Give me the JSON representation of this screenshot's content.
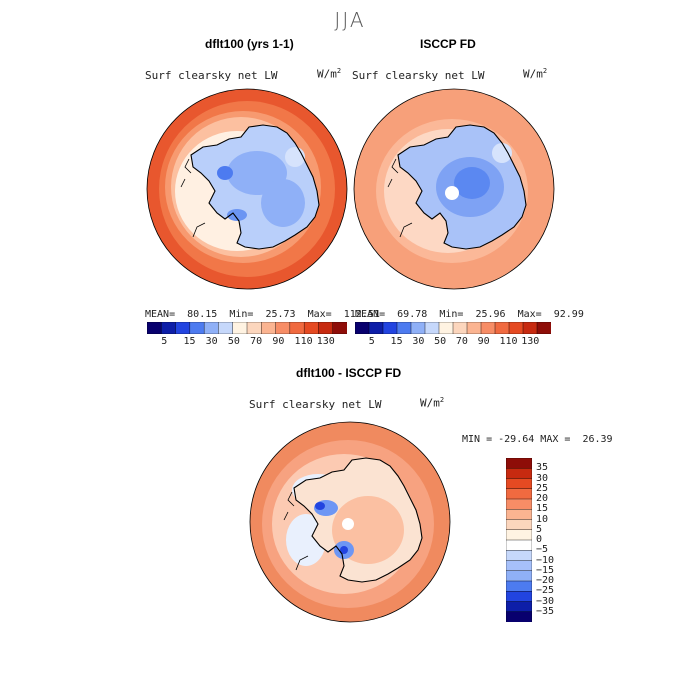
{
  "season": "JJA",
  "units_base": "W/m",
  "units_exp": "2",
  "panels": {
    "model": {
      "title": "dflt100 (yrs 1-1)",
      "variable": "Surf clearsky net LW",
      "mean_label": "MEAN=",
      "mean": "80.15",
      "min_label": "Min=",
      "min": "25.73",
      "max_label": "Max=",
      "max": "112.51"
    },
    "obs": {
      "title": "ISCCP FD",
      "variable": "Surf clearsky net LW",
      "mean_label": "MEAN=",
      "mean": "69.78",
      "min_label": "Min=",
      "min": "25.96",
      "max_label": "Max=",
      "max": "92.99"
    },
    "diff": {
      "title": "dflt100 - ISCCP FD",
      "variable": "Surf clearsky net LW",
      "min_label": "MIN =",
      "min": "-29.64",
      "max_label": "MAX =",
      "max": "26.39"
    }
  },
  "colorbar_abs": {
    "labels": [
      "5",
      "15",
      "30",
      "50",
      "70",
      "90",
      "110",
      "130"
    ],
    "colors": [
      "#08006e",
      "#0d1ea8",
      "#2244e0",
      "#4d7bf0",
      "#8fb0f7",
      "#c6d8fb",
      "#fff3e2",
      "#fcd6bd",
      "#fbb491",
      "#f78d66",
      "#f06a40",
      "#e54a22",
      "#c72a10",
      "#8e0d08"
    ]
  },
  "colorbar_diff": {
    "labels": [
      "35",
      "30",
      "25",
      "20",
      "15",
      "10",
      "5",
      "0",
      "−5",
      "−10",
      "−15",
      "−20",
      "−25",
      "−30",
      "−35"
    ],
    "colors": [
      "#8e0d08",
      "#c72a10",
      "#e54a22",
      "#f06a40",
      "#f78d66",
      "#fbb491",
      "#fcd6bd",
      "#fff3e2",
      "#ffffff",
      "#c6d8fb",
      "#a6c0fa",
      "#8fb0f7",
      "#4d7bf0",
      "#2244e0",
      "#0d1ea8",
      "#08006e"
    ]
  }
}
